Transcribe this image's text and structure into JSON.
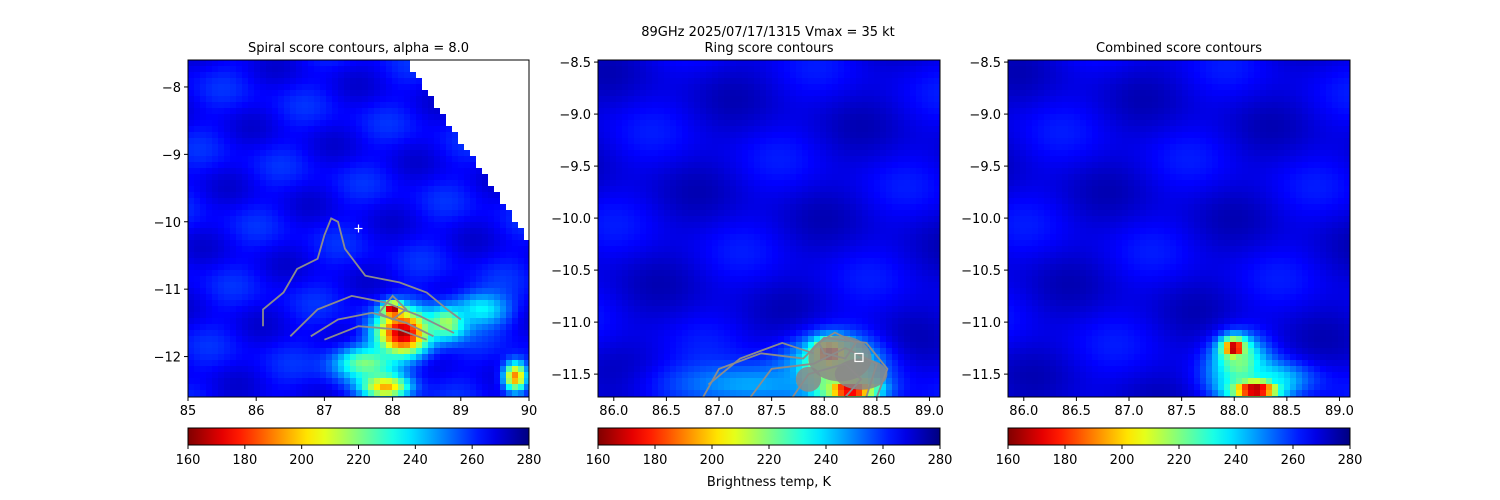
{
  "figure": {
    "suptitle_line1": "89GHz  2025/07/17/1315    Vmax = 35 kt",
    "colorbar_label": "Brightness temp, K"
  },
  "colorscale": {
    "name": "jet",
    "min": 160,
    "max": 280,
    "reversed": true,
    "ticks": [
      160,
      180,
      200,
      220,
      240,
      260,
      280
    ]
  },
  "chart_data": [
    {
      "type": "heatmap",
      "title": "Spiral score contours, alpha =  8.0",
      "xlim": [
        85.0,
        90.0
      ],
      "ylim": [
        -12.6,
        -7.6
      ],
      "xticks": [
        85,
        86,
        87,
        88,
        89,
        90
      ],
      "yticks": [
        -12,
        -11,
        -10,
        -9,
        -8
      ],
      "xtick_labels": [
        "85",
        "86",
        "87",
        "88",
        "89",
        "90"
      ],
      "ytick_labels": [
        "−12",
        "−11",
        "−10",
        "−9",
        "−8"
      ],
      "background_tb": 265,
      "swath_edge": [
        [
          88.2,
          -7.6
        ],
        [
          90.0,
          -10.3
        ]
      ],
      "center_marker": {
        "symbol": "+",
        "color": "white",
        "x": 87.5,
        "y": -10.1
      },
      "cold_cores": [
        {
          "x": 88.15,
          "y": -11.65,
          "tb": 165,
          "rx": 0.45,
          "ry": 0.4
        },
        {
          "x": 88.0,
          "y": -11.3,
          "tb": 160,
          "rx": 0.15,
          "ry": 0.12
        },
        {
          "x": 87.6,
          "y": -12.1,
          "tb": 220,
          "rx": 0.55,
          "ry": 0.3
        },
        {
          "x": 88.8,
          "y": -11.5,
          "tb": 215,
          "rx": 0.35,
          "ry": 0.3
        },
        {
          "x": 89.3,
          "y": -11.3,
          "tb": 235,
          "rx": 0.5,
          "ry": 0.3
        },
        {
          "x": 89.8,
          "y": -12.3,
          "tb": 190,
          "rx": 0.2,
          "ry": 0.25
        },
        {
          "x": 87.9,
          "y": -12.45,
          "tb": 195,
          "rx": 0.4,
          "ry": 0.2
        }
      ],
      "contour_lines": [
        [
          [
            86.1,
            -11.55
          ],
          [
            86.1,
            -11.3
          ],
          [
            86.4,
            -11.05
          ],
          [
            86.6,
            -10.7
          ],
          [
            86.9,
            -10.55
          ],
          [
            87.0,
            -10.2
          ],
          [
            87.1,
            -9.95
          ],
          [
            87.2,
            -10.0
          ],
          [
            87.3,
            -10.4
          ],
          [
            87.6,
            -10.8
          ],
          [
            88.1,
            -10.9
          ],
          [
            88.5,
            -11.05
          ],
          [
            88.8,
            -11.3
          ],
          [
            89.0,
            -11.45
          ]
        ],
        [
          [
            86.5,
            -11.7
          ],
          [
            86.9,
            -11.3
          ],
          [
            87.4,
            -11.1
          ],
          [
            87.9,
            -11.2
          ],
          [
            88.4,
            -11.4
          ],
          [
            88.9,
            -11.65
          ]
        ],
        [
          [
            86.8,
            -11.7
          ],
          [
            87.2,
            -11.45
          ],
          [
            87.7,
            -11.35
          ],
          [
            88.2,
            -11.5
          ],
          [
            88.6,
            -11.7
          ]
        ],
        [
          [
            87.0,
            -11.75
          ],
          [
            87.5,
            -11.55
          ],
          [
            88.1,
            -11.6
          ],
          [
            88.5,
            -11.75
          ]
        ],
        [
          [
            87.8,
            -11.35
          ],
          [
            88.0,
            -11.1
          ],
          [
            88.2,
            -11.3
          ],
          [
            88.0,
            -11.45
          ],
          [
            87.8,
            -11.35
          ]
        ]
      ]
    },
    {
      "type": "heatmap",
      "title": "Ring score contours",
      "xlim": [
        85.85,
        89.1
      ],
      "ylim": [
        -11.72,
        -8.48
      ],
      "xticks": [
        86.0,
        86.5,
        87.0,
        87.5,
        88.0,
        88.5,
        89.0
      ],
      "yticks": [
        -11.5,
        -11.0,
        -10.5,
        -10.0,
        -9.5,
        -9.0,
        -8.5
      ],
      "xtick_labels": [
        "86.0",
        "86.5",
        "87.0",
        "87.5",
        "88.0",
        "88.5",
        "89.0"
      ],
      "ytick_labels": [
        "−11.5",
        "−11.0",
        "−10.5",
        "−10.0",
        "−9.5",
        "−9.0",
        "−8.5"
      ],
      "background_tb": 268,
      "center_marker": {
        "symbol": "square",
        "color": "white",
        "x": 88.33,
        "y": -11.34
      },
      "cold_cores": [
        {
          "x": 88.05,
          "y": -11.3,
          "tb": 165,
          "rx": 0.18,
          "ry": 0.15
        },
        {
          "x": 88.25,
          "y": -11.65,
          "tb": 165,
          "rx": 0.3,
          "ry": 0.12
        },
        {
          "x": 88.1,
          "y": -11.45,
          "tb": 215,
          "rx": 0.5,
          "ry": 0.35
        },
        {
          "x": 87.3,
          "y": -11.6,
          "tb": 245,
          "rx": 1.0,
          "ry": 0.25
        }
      ],
      "contour_lines": [
        [
          [
            86.85,
            -11.72
          ],
          [
            87.0,
            -11.45
          ],
          [
            87.4,
            -11.3
          ],
          [
            87.8,
            -11.35
          ],
          [
            88.0,
            -11.15
          ],
          [
            88.4,
            -11.2
          ],
          [
            88.6,
            -11.45
          ],
          [
            88.5,
            -11.72
          ]
        ],
        [
          [
            87.3,
            -11.72
          ],
          [
            87.5,
            -11.45
          ],
          [
            87.9,
            -11.4
          ],
          [
            88.2,
            -11.25
          ],
          [
            88.5,
            -11.4
          ],
          [
            88.4,
            -11.72
          ]
        ],
        [
          [
            86.9,
            -11.6
          ],
          [
            87.2,
            -11.35
          ],
          [
            87.6,
            -11.2
          ],
          [
            87.9,
            -11.3
          ]
        ],
        [
          [
            87.7,
            -11.72
          ],
          [
            87.85,
            -11.5
          ],
          [
            88.2,
            -11.4
          ],
          [
            88.35,
            -11.55
          ],
          [
            88.2,
            -11.72
          ]
        ],
        [
          [
            87.95,
            -11.2
          ],
          [
            88.1,
            -11.1
          ],
          [
            88.3,
            -11.2
          ],
          [
            88.2,
            -11.35
          ],
          [
            88.0,
            -11.3
          ],
          [
            87.95,
            -11.2
          ]
        ]
      ],
      "gray_fill_regions": [
        {
          "x": 88.15,
          "y": -11.35,
          "rx": 0.3,
          "ry": 0.22
        },
        {
          "x": 88.35,
          "y": -11.5,
          "rx": 0.25,
          "ry": 0.15
        },
        {
          "x": 87.85,
          "y": -11.55,
          "rx": 0.12,
          "ry": 0.12
        }
      ]
    },
    {
      "type": "heatmap",
      "title": "Combined score contours",
      "xlim": [
        85.85,
        89.1
      ],
      "ylim": [
        -11.72,
        -8.48
      ],
      "xticks": [
        86.0,
        86.5,
        87.0,
        87.5,
        88.0,
        88.5,
        89.0
      ],
      "yticks": [
        -11.5,
        -11.0,
        -10.5,
        -10.0,
        -9.5,
        -9.0,
        -8.5
      ],
      "xtick_labels": [
        "86.0",
        "86.5",
        "87.0",
        "87.5",
        "88.0",
        "88.5",
        "89.0"
      ],
      "ytick_labels": [
        "−11.5",
        "−11.0",
        "−10.5",
        "−10.0",
        "−9.5",
        "−9.0",
        "−8.5"
      ],
      "background_tb": 268,
      "cold_cores": [
        {
          "x": 88.0,
          "y": -11.25,
          "tb": 160,
          "rx": 0.14,
          "ry": 0.12
        },
        {
          "x": 88.2,
          "y": -11.65,
          "tb": 160,
          "rx": 0.28,
          "ry": 0.12
        },
        {
          "x": 88.05,
          "y": -11.4,
          "tb": 220,
          "rx": 0.3,
          "ry": 0.3
        },
        {
          "x": 88.3,
          "y": -11.55,
          "tb": 235,
          "rx": 0.5,
          "ry": 0.2
        }
      ],
      "contour_lines": []
    }
  ]
}
